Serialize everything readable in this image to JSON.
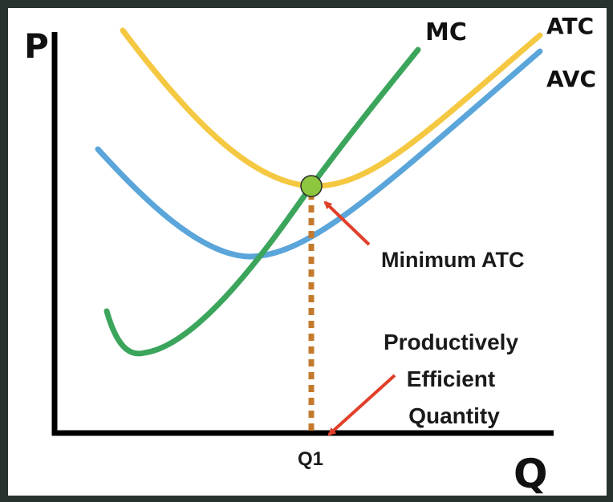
{
  "chart_data": {
    "type": "line",
    "xlabel": "Q",
    "ylabel": "P",
    "series": [
      {
        "name": "MC",
        "color": "#3ba55c"
      },
      {
        "name": "ATC",
        "color": "#f5c842"
      },
      {
        "name": "AVC",
        "color": "#5aa5da"
      }
    ],
    "annotations": {
      "minimum_atc": "Minimum ATC",
      "efficient_quantity": [
        "Productively",
        "Efficient",
        "Quantity"
      ],
      "q1_label": "Q1"
    },
    "colors": {
      "dotted_line": "#c47a2c",
      "arrow": "#e0402a",
      "point_fill": "#8dc63f",
      "axis": "#000000"
    }
  }
}
